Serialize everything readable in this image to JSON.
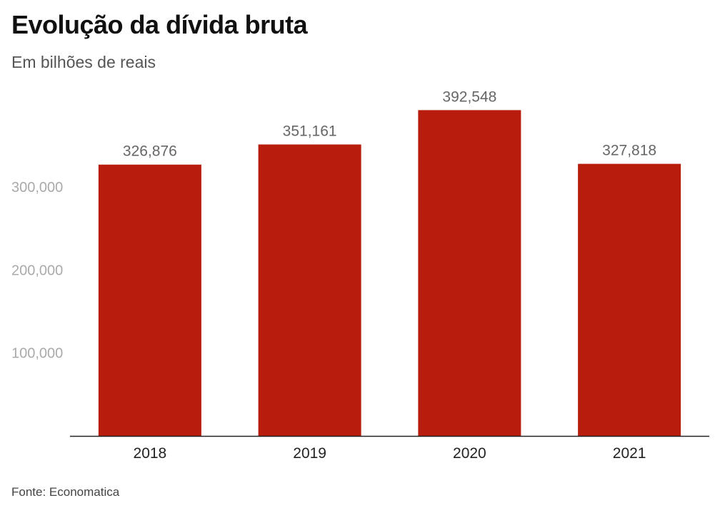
{
  "header": {
    "title": "Evolução da dívida bruta",
    "subtitle": "Em bilhões de reais"
  },
  "footer": {
    "source": "Fonte: Economatica"
  },
  "colors": {
    "bar": "#b71c0c",
    "axis": "#222222"
  },
  "chart_data": {
    "type": "bar",
    "title": "Evolução da dívida bruta",
    "subtitle": "Em bilhões de reais",
    "categories": [
      "2018",
      "2019",
      "2020",
      "2021"
    ],
    "values": [
      326876,
      351161,
      392548,
      327818
    ],
    "value_labels": [
      "326,876",
      "351,161",
      "392,548",
      "327,818"
    ],
    "y_ticks": [
      100000,
      200000,
      300000
    ],
    "y_tick_labels": [
      "100,000",
      "200,000",
      "300,000"
    ],
    "ylim": [
      0,
      400000
    ],
    "grid": false,
    "legend": "none"
  }
}
